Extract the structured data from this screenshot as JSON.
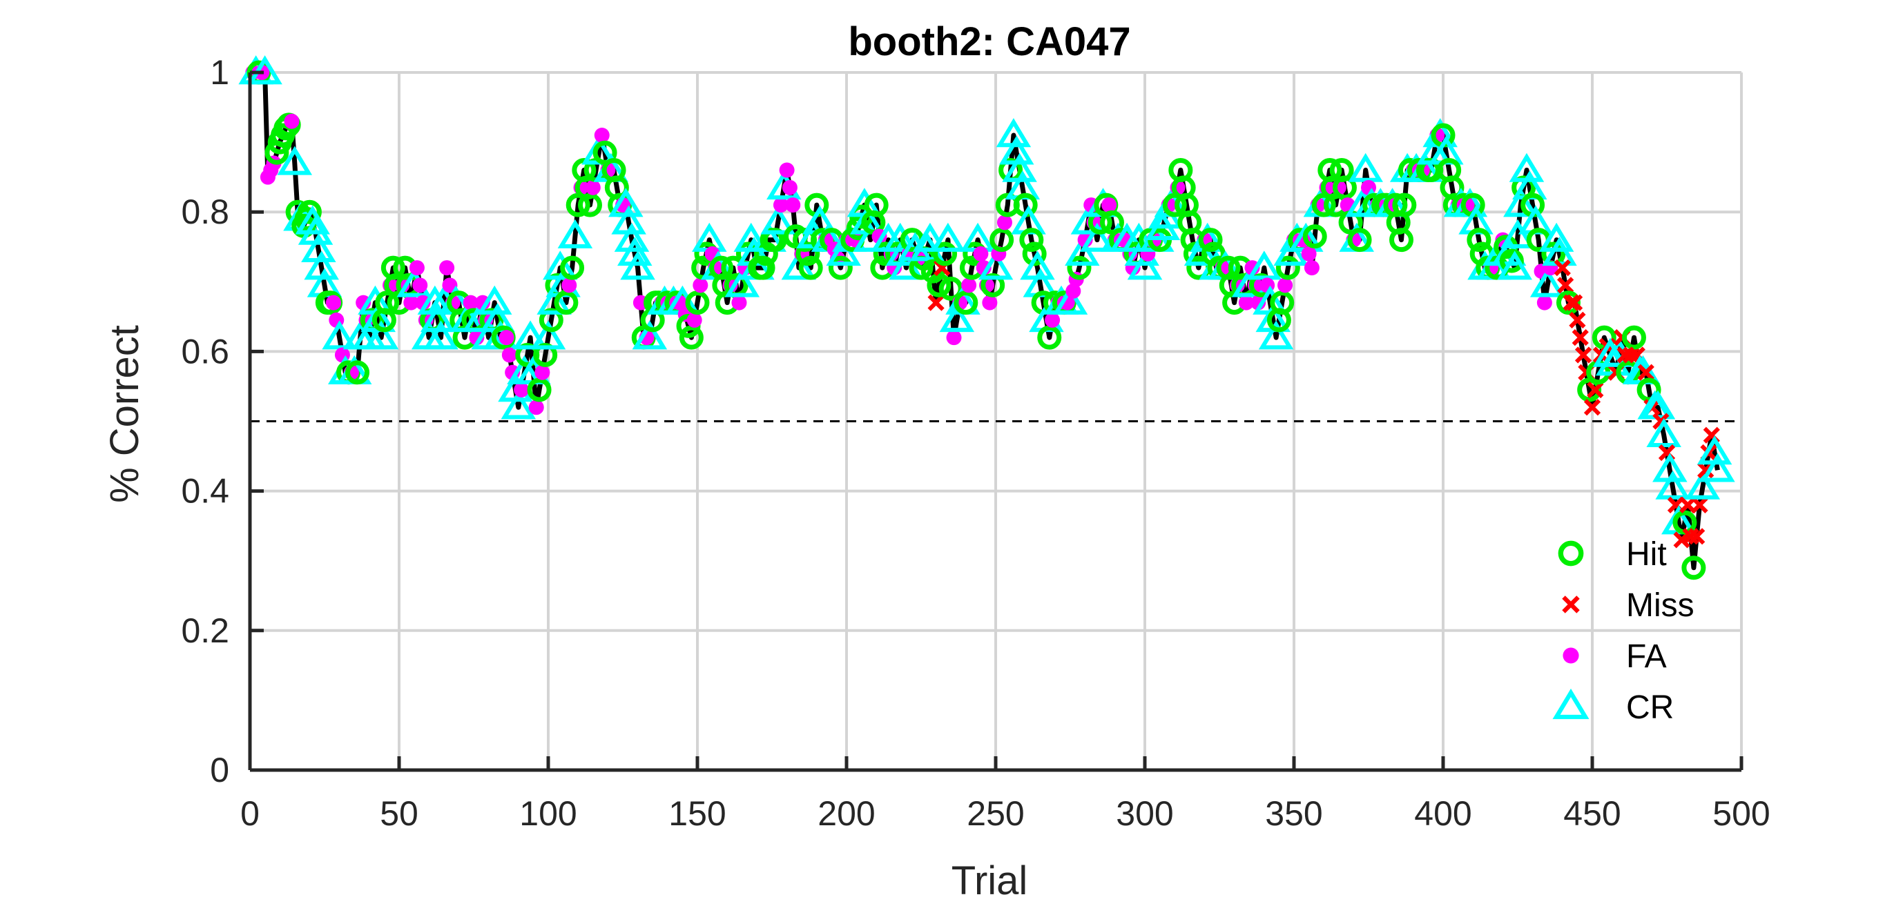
{
  "chart_data": {
    "type": "line",
    "title": "booth2: CA047",
    "xlabel": "Trial",
    "ylabel": "% Correct",
    "xlim": [
      0,
      500
    ],
    "ylim": [
      0,
      1
    ],
    "xticks": [
      "0",
      "50",
      "100",
      "150",
      "200",
      "250",
      "300",
      "350",
      "400",
      "450",
      "500"
    ],
    "yticks": [
      "0",
      "0.2",
      "0.4",
      "0.6",
      "0.8",
      "1"
    ],
    "grid": true,
    "reference_line": {
      "y": 0.5,
      "style": "dashed"
    },
    "legend": {
      "placement": "bottom-right",
      "entries": [
        {
          "label": "Hit",
          "marker": "circle",
          "color": "#00ee00"
        },
        {
          "label": "Miss",
          "marker": "x",
          "color": "#ff0000"
        },
        {
          "label": "FA",
          "marker": "dot",
          "color": "#ff00ff"
        },
        {
          "label": "CR",
          "marker": "triangle",
          "color": "#00ffff"
        }
      ]
    },
    "line_color": "#000000",
    "anchors": [
      [
        1,
        1.0
      ],
      [
        5,
        1.0
      ],
      [
        6,
        0.85
      ],
      [
        8,
        0.87
      ],
      [
        10,
        0.9
      ],
      [
        12,
        0.92
      ],
      [
        14,
        0.93
      ],
      [
        15,
        0.87
      ],
      [
        16,
        0.8
      ],
      [
        18,
        0.78
      ],
      [
        20,
        0.8
      ],
      [
        22,
        0.77
      ],
      [
        24,
        0.72
      ],
      [
        26,
        0.67
      ],
      [
        28,
        0.67
      ],
      [
        30,
        0.62
      ],
      [
        32,
        0.57
      ],
      [
        34,
        0.57
      ],
      [
        36,
        0.57
      ],
      [
        38,
        0.67
      ],
      [
        40,
        0.62
      ],
      [
        42,
        0.67
      ],
      [
        44,
        0.62
      ],
      [
        46,
        0.67
      ],
      [
        48,
        0.72
      ],
      [
        50,
        0.67
      ],
      [
        52,
        0.72
      ],
      [
        54,
        0.67
      ],
      [
        56,
        0.72
      ],
      [
        58,
        0.67
      ],
      [
        60,
        0.62
      ],
      [
        62,
        0.67
      ],
      [
        64,
        0.62
      ],
      [
        66,
        0.72
      ],
      [
        68,
        0.67
      ],
      [
        70,
        0.67
      ],
      [
        72,
        0.62
      ],
      [
        74,
        0.67
      ],
      [
        76,
        0.62
      ],
      [
        78,
        0.67
      ],
      [
        80,
        0.62
      ],
      [
        82,
        0.67
      ],
      [
        84,
        0.62
      ],
      [
        86,
        0.62
      ],
      [
        88,
        0.57
      ],
      [
        90,
        0.52
      ],
      [
        92,
        0.57
      ],
      [
        94,
        0.62
      ],
      [
        96,
        0.52
      ],
      [
        98,
        0.57
      ],
      [
        100,
        0.62
      ],
      [
        102,
        0.67
      ],
      [
        104,
        0.72
      ],
      [
        106,
        0.67
      ],
      [
        108,
        0.72
      ],
      [
        110,
        0.81
      ],
      [
        112,
        0.86
      ],
      [
        114,
        0.81
      ],
      [
        116,
        0.86
      ],
      [
        118,
        0.91
      ],
      [
        120,
        0.86
      ],
      [
        122,
        0.86
      ],
      [
        124,
        0.81
      ],
      [
        126,
        0.81
      ],
      [
        128,
        0.76
      ],
      [
        130,
        0.72
      ],
      [
        132,
        0.62
      ],
      [
        134,
        0.62
      ],
      [
        136,
        0.67
      ],
      [
        140,
        0.67
      ],
      [
        145,
        0.67
      ],
      [
        148,
        0.62
      ],
      [
        150,
        0.67
      ],
      [
        152,
        0.72
      ],
      [
        154,
        0.76
      ],
      [
        156,
        0.72
      ],
      [
        158,
        0.72
      ],
      [
        160,
        0.67
      ],
      [
        162,
        0.72
      ],
      [
        164,
        0.67
      ],
      [
        166,
        0.72
      ],
      [
        168,
        0.76
      ],
      [
        170,
        0.72
      ],
      [
        172,
        0.72
      ],
      [
        174,
        0.76
      ],
      [
        176,
        0.76
      ],
      [
        178,
        0.81
      ],
      [
        180,
        0.86
      ],
      [
        182,
        0.81
      ],
      [
        184,
        0.72
      ],
      [
        186,
        0.76
      ],
      [
        188,
        0.72
      ],
      [
        190,
        0.81
      ],
      [
        192,
        0.76
      ],
      [
        195,
        0.76
      ],
      [
        198,
        0.72
      ],
      [
        200,
        0.76
      ],
      [
        203,
        0.76
      ],
      [
        206,
        0.81
      ],
      [
        208,
        0.76
      ],
      [
        210,
        0.81
      ],
      [
        212,
        0.72
      ],
      [
        214,
        0.76
      ],
      [
        216,
        0.72
      ],
      [
        218,
        0.76
      ],
      [
        220,
        0.72
      ],
      [
        222,
        0.76
      ],
      [
        225,
        0.72
      ],
      [
        228,
        0.76
      ],
      [
        230,
        0.67
      ],
      [
        232,
        0.72
      ],
      [
        234,
        0.76
      ],
      [
        236,
        0.62
      ],
      [
        238,
        0.67
      ],
      [
        240,
        0.67
      ],
      [
        242,
        0.72
      ],
      [
        244,
        0.76
      ],
      [
        246,
        0.72
      ],
      [
        248,
        0.67
      ],
      [
        250,
        0.72
      ],
      [
        252,
        0.76
      ],
      [
        254,
        0.81
      ],
      [
        256,
        0.91
      ],
      [
        258,
        0.86
      ],
      [
        260,
        0.81
      ],
      [
        262,
        0.76
      ],
      [
        264,
        0.72
      ],
      [
        266,
        0.67
      ],
      [
        268,
        0.62
      ],
      [
        270,
        0.67
      ],
      [
        275,
        0.67
      ],
      [
        278,
        0.72
      ],
      [
        280,
        0.76
      ],
      [
        282,
        0.81
      ],
      [
        284,
        0.76
      ],
      [
        286,
        0.81
      ],
      [
        288,
        0.81
      ],
      [
        290,
        0.76
      ],
      [
        294,
        0.76
      ],
      [
        296,
        0.72
      ],
      [
        298,
        0.76
      ],
      [
        300,
        0.72
      ],
      [
        302,
        0.76
      ],
      [
        305,
        0.76
      ],
      [
        308,
        0.81
      ],
      [
        310,
        0.81
      ],
      [
        312,
        0.86
      ],
      [
        314,
        0.81
      ],
      [
        316,
        0.76
      ],
      [
        318,
        0.72
      ],
      [
        320,
        0.76
      ],
      [
        322,
        0.76
      ],
      [
        324,
        0.72
      ],
      [
        328,
        0.72
      ],
      [
        330,
        0.67
      ],
      [
        332,
        0.72
      ],
      [
        334,
        0.67
      ],
      [
        336,
        0.72
      ],
      [
        338,
        0.67
      ],
      [
        340,
        0.72
      ],
      [
        342,
        0.67
      ],
      [
        344,
        0.62
      ],
      [
        346,
        0.67
      ],
      [
        348,
        0.72
      ],
      [
        350,
        0.76
      ],
      [
        354,
        0.76
      ],
      [
        356,
        0.72
      ],
      [
        358,
        0.81
      ],
      [
        360,
        0.81
      ],
      [
        362,
        0.86
      ],
      [
        364,
        0.81
      ],
      [
        366,
        0.86
      ],
      [
        368,
        0.81
      ],
      [
        370,
        0.76
      ],
      [
        372,
        0.76
      ],
      [
        374,
        0.86
      ],
      [
        376,
        0.81
      ],
      [
        380,
        0.81
      ],
      [
        384,
        0.81
      ],
      [
        386,
        0.76
      ],
      [
        388,
        0.86
      ],
      [
        392,
        0.86
      ],
      [
        396,
        0.86
      ],
      [
        398,
        0.91
      ],
      [
        400,
        0.91
      ],
      [
        402,
        0.86
      ],
      [
        404,
        0.81
      ],
      [
        406,
        0.81
      ],
      [
        408,
        0.81
      ],
      [
        410,
        0.81
      ],
      [
        412,
        0.76
      ],
      [
        414,
        0.72
      ],
      [
        418,
        0.72
      ],
      [
        420,
        0.76
      ],
      [
        424,
        0.72
      ],
      [
        426,
        0.81
      ],
      [
        428,
        0.86
      ],
      [
        430,
        0.81
      ],
      [
        432,
        0.76
      ],
      [
        434,
        0.67
      ],
      [
        436,
        0.72
      ],
      [
        438,
        0.76
      ],
      [
        440,
        0.72
      ],
      [
        442,
        0.67
      ],
      [
        444,
        0.67
      ],
      [
        446,
        0.62
      ],
      [
        448,
        0.57
      ],
      [
        450,
        0.52
      ],
      [
        452,
        0.57
      ],
      [
        454,
        0.62
      ],
      [
        458,
        0.57
      ],
      [
        460,
        0.62
      ],
      [
        462,
        0.57
      ],
      [
        464,
        0.62
      ],
      [
        466,
        0.57
      ],
      [
        468,
        0.57
      ],
      [
        470,
        0.52
      ],
      [
        472,
        0.52
      ],
      [
        474,
        0.48
      ],
      [
        476,
        0.43
      ],
      [
        478,
        0.38
      ],
      [
        480,
        0.33
      ],
      [
        482,
        0.38
      ],
      [
        484,
        0.29
      ],
      [
        486,
        0.38
      ],
      [
        488,
        0.43
      ],
      [
        490,
        0.48
      ],
      [
        492,
        0.43
      ]
    ]
  }
}
